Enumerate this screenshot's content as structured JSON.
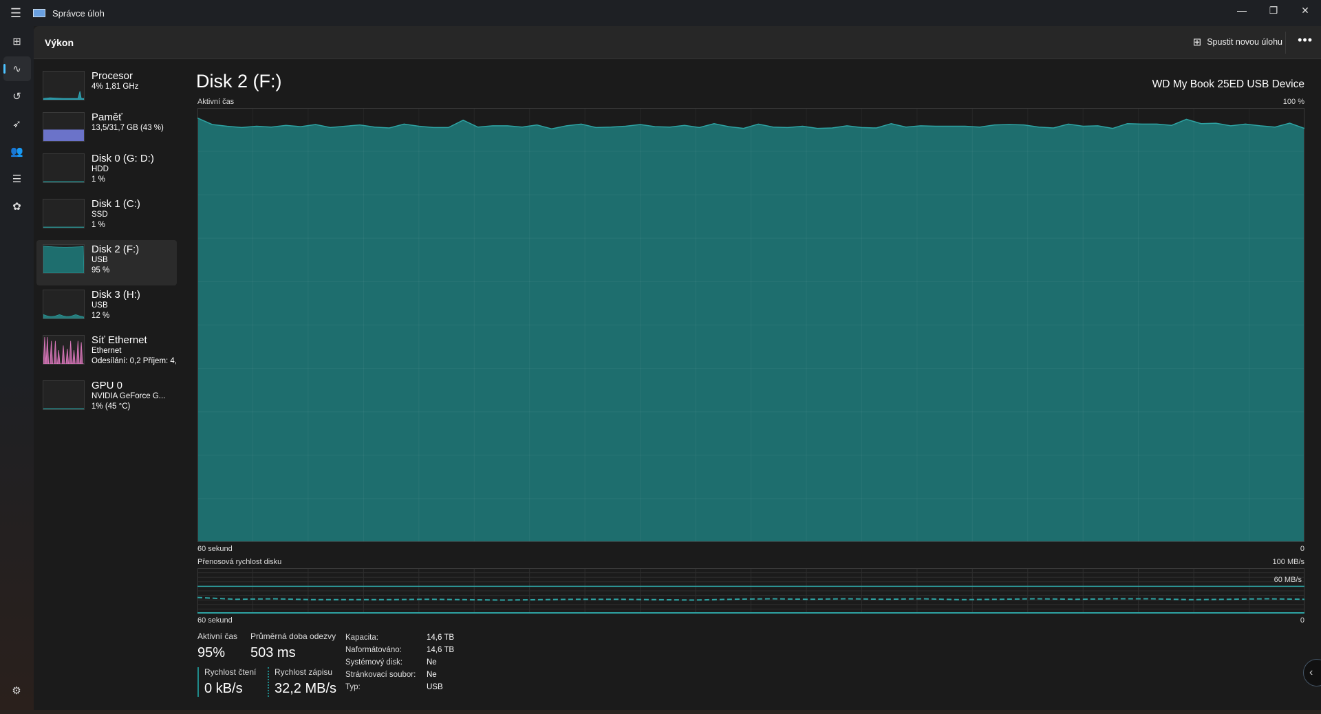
{
  "window": {
    "title": "Správce úloh",
    "minimize": "—",
    "restore": "❐",
    "close": "✕"
  },
  "header": {
    "title": "Výkon",
    "run_task": "Spustit novou úlohu",
    "more": "•••"
  },
  "nav": [
    {
      "name": "processes",
      "icon": "⊞"
    },
    {
      "name": "performance",
      "icon": "∿"
    },
    {
      "name": "app-history",
      "icon": "↺"
    },
    {
      "name": "startup-apps",
      "icon": "➶"
    },
    {
      "name": "users",
      "icon": "👥"
    },
    {
      "name": "details",
      "icon": "☰"
    },
    {
      "name": "services",
      "icon": "✿"
    }
  ],
  "settings_icon": "⚙",
  "sidebar": [
    {
      "name": "Procesor",
      "sub1": "4% 1,81 GHz",
      "sub2": "",
      "color": "#2fb5c8",
      "kind": "cpu"
    },
    {
      "name": "Paměť",
      "sub1": "13,5/31,7 GB (43 %)",
      "sub2": "",
      "color": "#6b73c9",
      "kind": "mem"
    },
    {
      "name": "Disk 0 (G: D:)",
      "sub1": "HDD",
      "sub2": "1 %",
      "color": "#2a9a9a",
      "kind": "flat"
    },
    {
      "name": "Disk 1 (C:)",
      "sub1": "SSD",
      "sub2": "1 %",
      "color": "#2a9a9a",
      "kind": "flat"
    },
    {
      "name": "Disk 2 (F:)",
      "sub1": "USB",
      "sub2": "95 %",
      "color": "#2a9a9a",
      "kind": "full",
      "selected": true
    },
    {
      "name": "Disk 3 (H:)",
      "sub1": "USB",
      "sub2": "12 %",
      "color": "#2a9a9a",
      "kind": "low"
    },
    {
      "name": "Síť Ethernet",
      "sub1": "Ethernet",
      "sub2": "Odesílání: 0,2 Příjem: 4,",
      "color": "#e07ac0",
      "kind": "net"
    },
    {
      "name": "GPU 0",
      "sub1": "NVIDIA GeForce G...",
      "sub2": "1% (45 °C)",
      "color": "#2a9a9a",
      "kind": "flat"
    }
  ],
  "main": {
    "title": "Disk 2 (F:)",
    "model": "WD My Book 25ED USB Device"
  },
  "colors": {
    "fill": "#1e6e6e",
    "line": "#2ea3a3",
    "grid": "#2c3a3a"
  },
  "chart_data": [
    {
      "type": "area",
      "ylabel": "Aktivní čas",
      "ymax_label": "100 %",
      "xlabel": "60 sekund",
      "xmin_label": "0",
      "ylim": [
        0,
        100
      ],
      "grid": true,
      "values": [
        97.7,
        96.2,
        95.8,
        95.5,
        95.8,
        95.6,
        96.0,
        95.7,
        96.2,
        95.5,
        95.8,
        96.1,
        95.6,
        95.4,
        96.3,
        95.8,
        95.5,
        95.5,
        97.2,
        95.6,
        95.9,
        95.9,
        95.6,
        96.1,
        95.2,
        95.9,
        96.3,
        95.5,
        95.6,
        95.8,
        96.2,
        95.7,
        95.6,
        96.0,
        95.5,
        96.4,
        95.7,
        95.3,
        96.3,
        95.6,
        95.5,
        95.8,
        95.3,
        95.4,
        95.9,
        95.5,
        95.4,
        96.4,
        95.6,
        95.9,
        95.8,
        95.8,
        95.8,
        95.6,
        96.1,
        96.2,
        96.1,
        95.6,
        95.4,
        96.3,
        95.8,
        95.9,
        95.3,
        96.4,
        96.3,
        96.3,
        96.0,
        97.4,
        96.4,
        96.5,
        95.9,
        96.3,
        95.9,
        95.6,
        96.5,
        95.3
      ]
    },
    {
      "type": "line",
      "ylabel": "Přenosová rychlost disku",
      "ymax_label": "100 MB/s",
      "scale_label": "60 MB/s",
      "scale_value": 60,
      "xlabel": "60 sekund",
      "xmin_label": "0",
      "ylim": [
        0,
        100
      ],
      "grid": true,
      "series": [
        {
          "style": "solid",
          "values": [
            0,
            0,
            0,
            0,
            0,
            0,
            0,
            0,
            0,
            0
          ]
        },
        {
          "style": "dashed",
          "values": [
            35,
            31,
            32,
            30,
            30,
            30,
            31,
            30,
            29,
            30,
            31,
            31,
            30,
            29,
            31,
            32,
            31,
            32,
            31,
            32,
            30,
            31,
            32,
            31,
            32,
            32,
            30,
            31,
            32,
            31
          ]
        }
      ]
    }
  ],
  "stats": {
    "active_label": "Aktivní čas",
    "active_value": "95%",
    "resp_label": "Průměrná doba odezvy",
    "resp_value": "503 ms",
    "read_label": "Rychlost čtení",
    "read_value": "0 kB/s",
    "write_label": "Rychlost zápisu",
    "write_value": "32,2 MB/s"
  },
  "props": [
    {
      "k": "Kapacita:",
      "v": "14,6 TB"
    },
    {
      "k": "Naformátováno:",
      "v": "14,6 TB"
    },
    {
      "k": "Systémový disk:",
      "v": "Ne"
    },
    {
      "k": "Stránkovací soubor:",
      "v": "Ne"
    },
    {
      "k": "Typ:",
      "v": "USB"
    }
  ],
  "collapse_icon": "‹"
}
